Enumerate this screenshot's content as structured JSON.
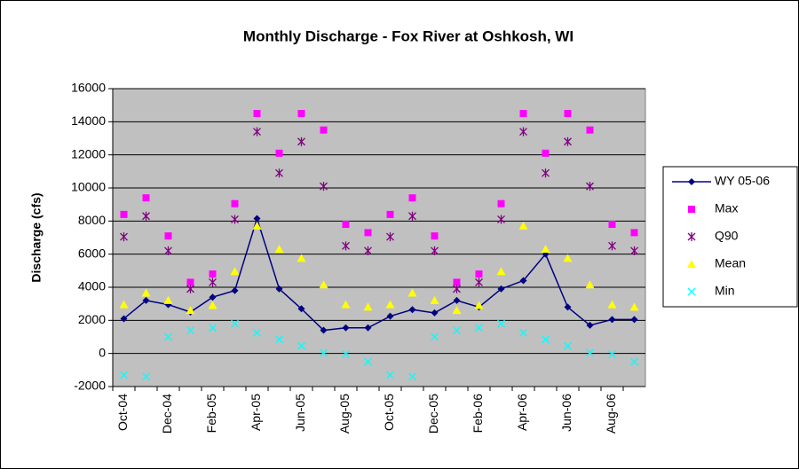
{
  "chart_data": {
    "type": "line",
    "title": "Monthly Discharge - Fox River at Oshkosh, WI",
    "y_label": "Discharge (cfs)",
    "categories": [
      "Oct-04",
      null,
      "Dec-04",
      null,
      "Feb-05",
      null,
      "Apr-05",
      null,
      "Jun-05",
      null,
      "Aug-05",
      null,
      "Oct-05",
      null,
      "Dec-05",
      null,
      "Feb-06",
      null,
      "Apr-06",
      null,
      "Jun-06",
      null,
      "Aug-06",
      null
    ],
    "ylim": [
      -2000,
      16000
    ],
    "yticks": [
      -2000,
      0,
      2000,
      4000,
      6000,
      8000,
      10000,
      12000,
      14000,
      16000
    ],
    "grid": true,
    "legend": "right",
    "series": [
      {
        "name": "WY 05-06",
        "color": "#000080",
        "marker": "diamond",
        "line": true,
        "values": [
          2100,
          3200,
          2950,
          2500,
          3400,
          3800,
          8150,
          3900,
          2700,
          1400,
          1550,
          1550,
          2250,
          2650,
          2450,
          3200,
          2800,
          3900,
          4400,
          6000,
          2800,
          1700,
          2050,
          2050
        ]
      },
      {
        "name": "Max",
        "color": "#ff00ff",
        "marker": "square",
        "line": false,
        "values": [
          8400,
          9400,
          7100,
          4300,
          4800,
          9050,
          14500,
          12100,
          14500,
          13500,
          7800,
          7300,
          8400,
          9400,
          7100,
          4300,
          4800,
          9050,
          14500,
          12100,
          14500,
          13500,
          7800,
          7300
        ]
      },
      {
        "name": "Q90",
        "color": "#800080",
        "marker": "star",
        "line": false,
        "values": [
          7050,
          8300,
          6200,
          3900,
          4300,
          8100,
          13400,
          10900,
          12800,
          10100,
          6500,
          6200,
          7050,
          8300,
          6200,
          3900,
          4300,
          8100,
          13400,
          10900,
          12800,
          10100,
          6500,
          6200
        ]
      },
      {
        "name": "Mean",
        "color": "#ffff00",
        "marker": "triangle",
        "line": false,
        "values": [
          2950,
          3650,
          3200,
          2600,
          2900,
          4950,
          7700,
          6300,
          5750,
          4150,
          2950,
          2800,
          2950,
          3650,
          3200,
          2600,
          2900,
          4950,
          7700,
          6300,
          5750,
          4150,
          2950,
          2800
        ]
      },
      {
        "name": "Min",
        "color": "#00ffff",
        "marker": "x",
        "line": false,
        "values": [
          -1300,
          -1400,
          1000,
          1400,
          1550,
          1800,
          1250,
          850,
          450,
          50,
          -50,
          -500,
          -1300,
          -1400,
          1000,
          1400,
          1550,
          1800,
          1250,
          850,
          450,
          50,
          -50,
          -500
        ]
      }
    ]
  }
}
